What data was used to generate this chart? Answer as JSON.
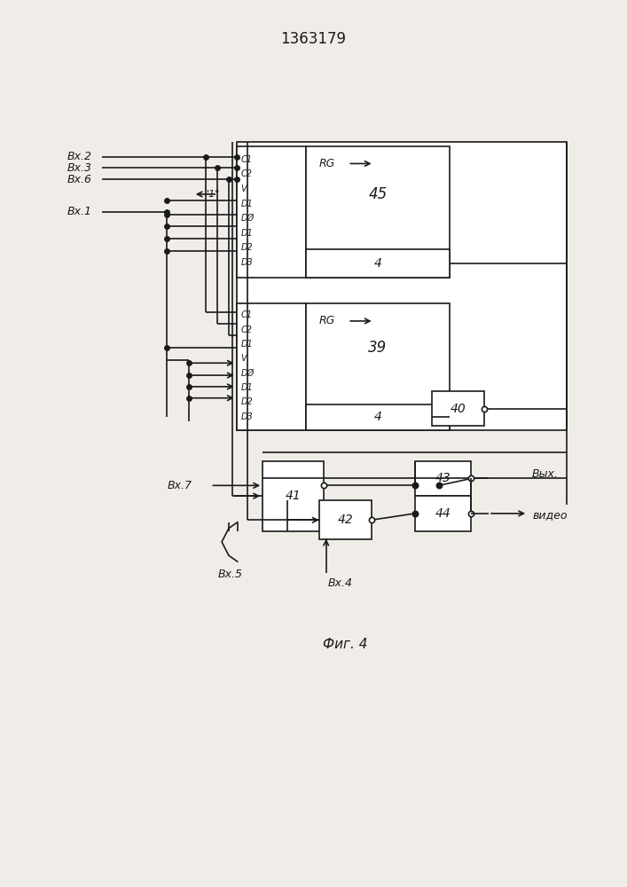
{
  "title": "1363179",
  "fig_label": "Фиг. 4",
  "bg_color": "#f0ede8",
  "line_color": "#1a1a1a",
  "labels45": [
    "C1",
    "C2",
    "V",
    "D1",
    "DØ",
    "D1",
    "D2",
    "D3"
  ],
  "labels39": [
    "C1",
    "C2",
    "D1",
    "V",
    "DØ",
    "D1",
    "D2",
    "D3"
  ],
  "bx2_label": "Вх.2",
  "bx3_label": "Вх.3",
  "bx6_label": "Вх.6",
  "bx1_label": "Вх.1",
  "bx7_label": "Вх.7",
  "bx5_label": "Вх.5",
  "bx4_label": "Вх.4",
  "video_label1": "Вых.",
  "video_label2": "видео",
  "rg_label": "RG",
  "one_label": "\"1\"",
  "b45_num": "45",
  "b45_sub": "4",
  "b39_num": "39",
  "b39_sub": "4",
  "b40_num": "40",
  "b41_num": "41",
  "b42_num": "42",
  "b43_num": "43",
  "b44_num": "44"
}
